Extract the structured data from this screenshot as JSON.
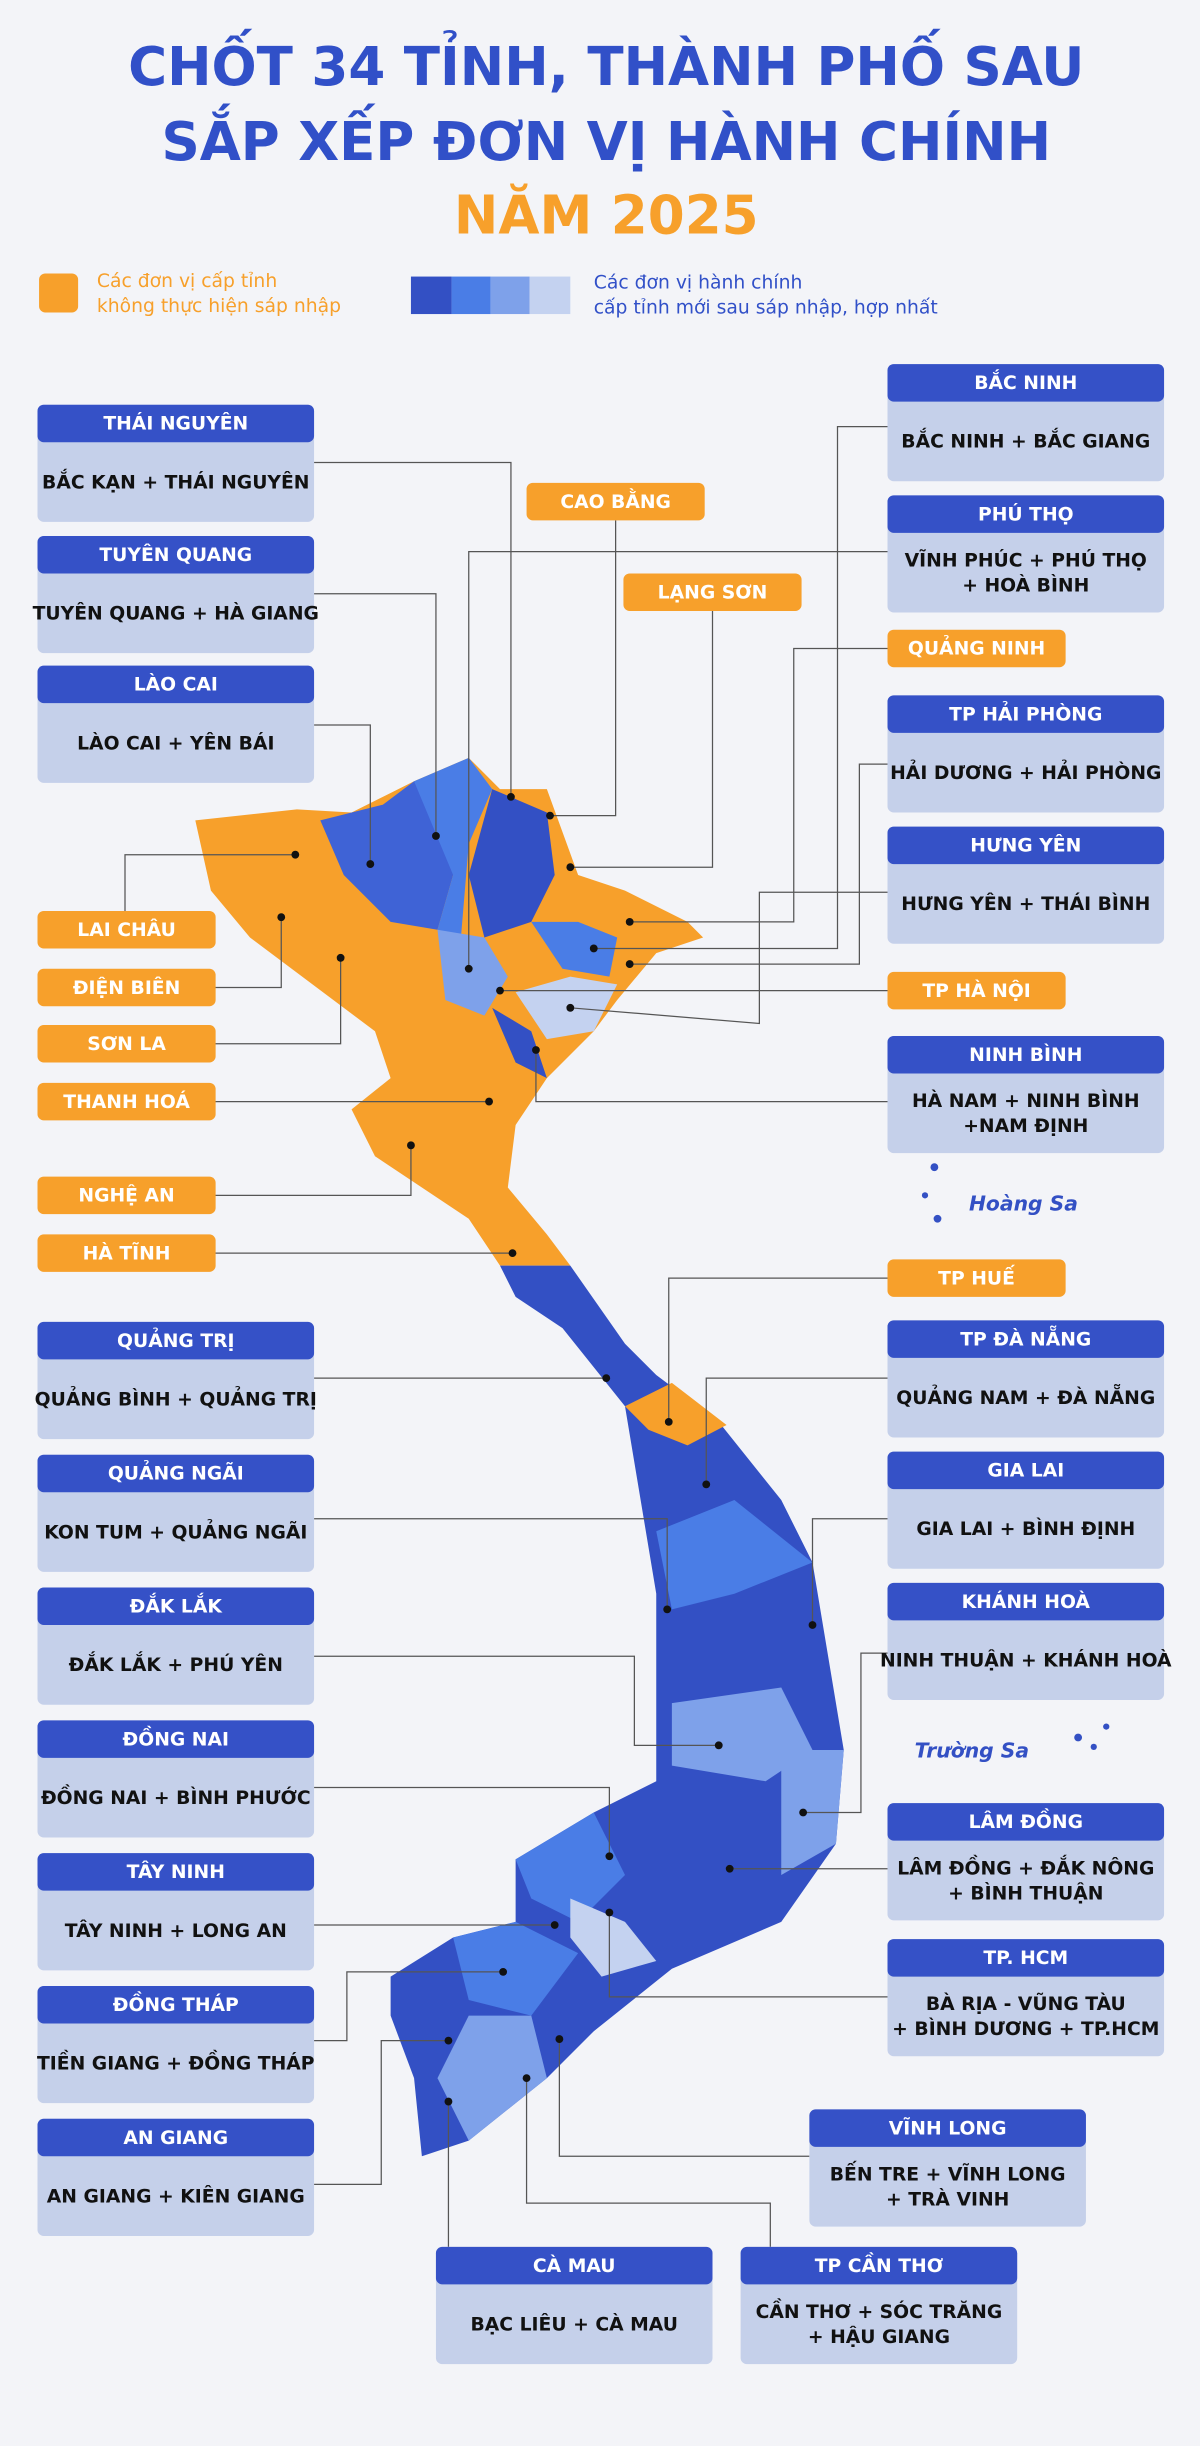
{
  "title": {
    "lines": [
      "CHỐT 34 TỈNH, THÀNH PHỐ SAU",
      "SẮP XẾP ĐƠN VỊ HÀNH CHÍNH"
    ],
    "year": "NĂM 2025"
  },
  "legend": {
    "unchanged": [
      "Các đơn vị cấp tỉnh",
      "không thực hiện sáp nhập"
    ],
    "merged": [
      "Các đơn vị hành chính",
      "cấp tỉnh mới sau sáp nhập, hợp nhất"
    ]
  },
  "merged_provinces": [
    {
      "name": "THÁI NGUYÊN",
      "members": [
        "BẮC KẠN + THÁI NGUYÊN"
      ]
    },
    {
      "name": "TUYÊN QUANG",
      "members": [
        "TUYÊN QUANG + HÀ GIANG"
      ]
    },
    {
      "name": "LÀO CAI",
      "members": [
        "LÀO CAI + YÊN BÁI"
      ]
    },
    {
      "name": "QUẢNG TRỊ",
      "members": [
        "QUẢNG BÌNH + QUẢNG TRỊ"
      ]
    },
    {
      "name": "QUẢNG NGÃI",
      "members": [
        "KON TUM + QUẢNG NGÃI"
      ]
    },
    {
      "name": "ĐẮK LẮK",
      "members": [
        "ĐẮK LẮK + PHÚ YÊN"
      ]
    },
    {
      "name": "ĐỒNG NAI",
      "members": [
        "ĐỒNG NAI + BÌNH PHƯỚC"
      ]
    },
    {
      "name": "TÂY NINH",
      "members": [
        "TÂY NINH + LONG AN"
      ]
    },
    {
      "name": "ĐỒNG THÁP",
      "members": [
        "TIỀN GIANG + ĐỒNG THÁP"
      ]
    },
    {
      "name": "AN GIANG",
      "members": [
        "AN GIANG + KIÊN GIANG"
      ]
    },
    {
      "name": "BẮC NINH",
      "members": [
        "BẮC NINH + BẮC GIANG"
      ]
    },
    {
      "name": "PHÚ THỌ",
      "members": [
        "VĨNH PHÚC + PHÚ THỌ",
        "+ HOÀ BÌNH"
      ]
    },
    {
      "name": "TP HẢI PHÒNG",
      "members": [
        "HẢI DƯƠNG + HẢI PHÒNG"
      ]
    },
    {
      "name": "HƯNG YÊN",
      "members": [
        "HƯNG YÊN + THÁI BÌNH"
      ]
    },
    {
      "name": "NINH BÌNH",
      "members": [
        "HÀ NAM + NINH BÌNH",
        "+NAM ĐỊNH"
      ]
    },
    {
      "name": "TP ĐÀ NẴNG",
      "members": [
        "QUẢNG NAM + ĐÀ NẴNG"
      ]
    },
    {
      "name": "GIA LAI",
      "members": [
        "GIA LAI + BÌNH ĐỊNH"
      ]
    },
    {
      "name": "KHÁNH HOÀ",
      "members": [
        "NINH THUẬN + KHÁNH HOÀ"
      ]
    },
    {
      "name": "LÂM ĐỒNG",
      "members": [
        "LÂM ĐỒNG + ĐẮK NÔNG",
        "+ BÌNH THUẬN"
      ]
    },
    {
      "name": "TP. HCM",
      "members": [
        "BÀ RỊA - VŨNG TÀU",
        "+  BÌNH DƯƠNG + TP.HCM"
      ]
    },
    {
      "name": "VĨNH LONG",
      "members": [
        "BẾN TRE + VĨNH LONG",
        "+ TRÀ VINH"
      ]
    },
    {
      "name": "CÀ MAU",
      "members": [
        "BẠC LIÊU + CÀ MAU"
      ]
    },
    {
      "name": "TP CẦN THƠ",
      "members": [
        "CẦN THƠ + SÓC TRĂNG",
        "+  HẬU GIANG"
      ]
    }
  ],
  "unchanged_provinces": [
    "CAO BẰNG",
    "LẠNG SƠN",
    "QUẢNG NINH",
    "TP HÀ NỘI",
    "TP HUẾ",
    "LAI CHÂU",
    "ĐIỆN BIÊN",
    "SƠN LA",
    "THANH HOÁ",
    "NGHỆ AN",
    "HÀ TĨNH"
  ],
  "islands": [
    "Hoàng Sa",
    "Trường Sa"
  ]
}
